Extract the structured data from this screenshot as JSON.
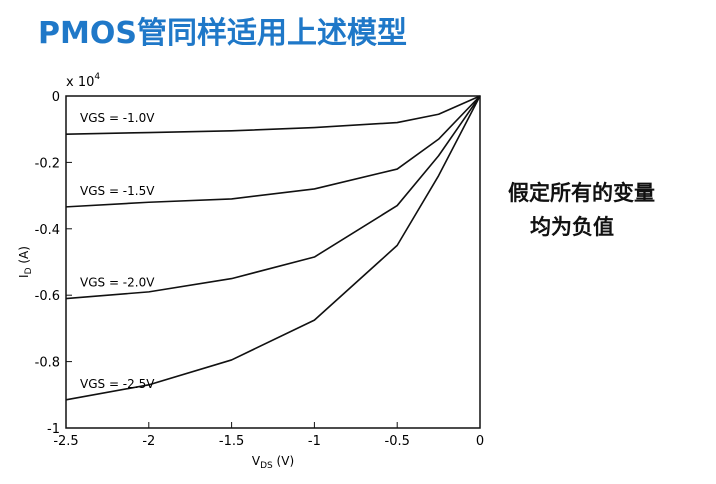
{
  "title": "PMOS管同样适用上述模型",
  "note": [
    "假定所有的变量",
    "均为负值"
  ],
  "chart_data": {
    "type": "line",
    "y_multiplier": {
      "base": "x 10",
      "exponent": "4"
    },
    "xlabel": {
      "main": "V",
      "sub": "DS",
      "unit": " (V)"
    },
    "ylabel": {
      "main": "I",
      "sub": "D",
      "unit": " (A)"
    },
    "x": [
      -2.5,
      -2,
      -1.5,
      -1,
      -0.5,
      -0.25,
      0
    ],
    "series": [
      {
        "name": "VGS = -1.0V",
        "color": "#111111",
        "values": [
          -0.115,
          -0.11,
          -0.105,
          -0.095,
          -0.08,
          -0.055,
          0
        ]
      },
      {
        "name": "VGS = -1.5V",
        "color": "#111111",
        "values": [
          -0.334,
          -0.32,
          -0.31,
          -0.28,
          -0.22,
          -0.13,
          0
        ]
      },
      {
        "name": "VGS = -2.0V",
        "color": "#111111",
        "values": [
          -0.61,
          -0.59,
          -0.55,
          -0.485,
          -0.33,
          -0.18,
          0
        ]
      },
      {
        "name": "VGS = -2.5V",
        "color": "#111111",
        "values": [
          -0.915,
          -0.87,
          -0.795,
          -0.675,
          -0.45,
          -0.24,
          0
        ]
      }
    ],
    "xlim": [
      -2.5,
      0
    ],
    "ylim": [
      -1,
      0
    ],
    "xticks": [
      -2.5,
      -2,
      -1.5,
      -1,
      -0.5,
      0
    ],
    "yticks": [
      0,
      -0.2,
      -0.4,
      -0.6,
      -0.8,
      -1
    ]
  }
}
